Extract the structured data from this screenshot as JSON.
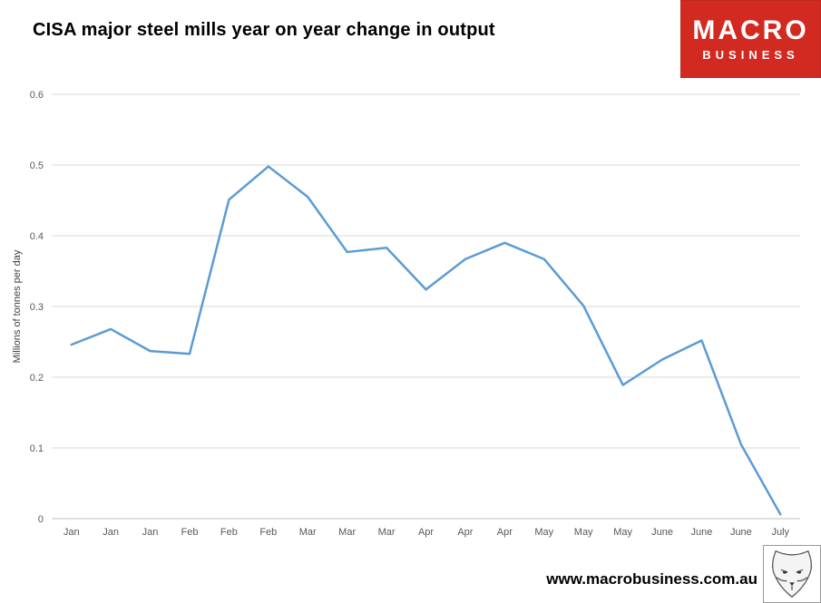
{
  "title": "CISA major steel mills year on year change in output",
  "logo": {
    "line1": "MACRO",
    "line2": "BUSINESS",
    "bg_color": "#d22a20",
    "text_color": "#ffffff"
  },
  "footer": {
    "url": "www.macrobusiness.com.au"
  },
  "chart_data": {
    "type": "line",
    "categories": [
      "Jan",
      "Jan",
      "Jan",
      "Feb",
      "Feb",
      "Feb",
      "Mar",
      "Mar",
      "Mar",
      "Apr",
      "Apr",
      "Apr",
      "May",
      "May",
      "May",
      "June",
      "June",
      "June",
      "July"
    ],
    "values": [
      0.246,
      0.268,
      0.237,
      0.233,
      0.451,
      0.498,
      0.455,
      0.377,
      0.383,
      0.324,
      0.367,
      0.39,
      0.367,
      0.301,
      0.189,
      0.225,
      0.252,
      0.105,
      0.006
    ],
    "title": "CISA major steel mills year on year change in output",
    "xlabel": "",
    "ylabel": "Millions of tonnes per day",
    "ylim": [
      0,
      0.6
    ],
    "yticks": [
      0,
      0.1,
      0.2,
      0.3,
      0.4,
      0.5,
      0.6
    ],
    "grid": true,
    "legend": "none",
    "line_color": "#5b9bd5",
    "gridline_color": "#d9d9d9",
    "axis_color": "#bfbfbf",
    "tick_label_color": "#595959"
  }
}
